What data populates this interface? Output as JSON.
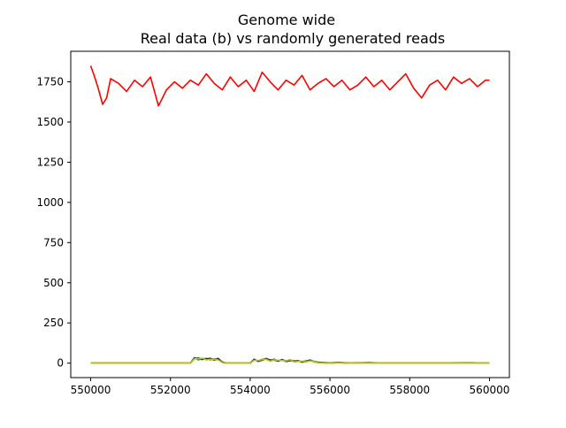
{
  "chart_data": {
    "type": "line",
    "title": "Genome wide",
    "subtitle": "Real data (b) vs randomly generated reads",
    "xlabel": "",
    "ylabel": "",
    "xlim": [
      549500,
      560500
    ],
    "ylim": [
      -90,
      1940
    ],
    "grid": false,
    "xticks": [
      550000,
      552000,
      554000,
      556000,
      558000,
      560000
    ],
    "xtick_labels": [
      "550000",
      "552000",
      "554000",
      "556000",
      "558000",
      "560000"
    ],
    "yticks": [
      0,
      250,
      500,
      750,
      1000,
      1250,
      1500,
      1750
    ],
    "ytick_labels": [
      "0",
      "250",
      "500",
      "750",
      "1000",
      "1250",
      "1500",
      "1750"
    ],
    "series": [
      {
        "color": "#ff0000",
        "x": [
          550000,
          550100,
          550200,
          550300,
          550400,
          550500,
          550700,
          550900,
          551100,
          551300,
          551500,
          551700,
          551900,
          552100,
          552300,
          552500,
          552700,
          552900,
          553100,
          553300,
          553500,
          553700,
          553900,
          554100,
          554300,
          554500,
          554700,
          554900,
          555100,
          555300,
          555500,
          555700,
          555900,
          556100,
          556300,
          556500,
          556700,
          556900,
          557100,
          557300,
          557500,
          557700,
          557900,
          558100,
          558300,
          558500,
          558700,
          558900,
          559100,
          559300,
          559500,
          559700,
          559900,
          560000
        ],
        "y": [
          1850,
          1780,
          1700,
          1610,
          1650,
          1770,
          1740,
          1690,
          1760,
          1720,
          1780,
          1600,
          1700,
          1750,
          1710,
          1760,
          1730,
          1800,
          1740,
          1700,
          1780,
          1720,
          1760,
          1690,
          1810,
          1750,
          1700,
          1760,
          1730,
          1790,
          1700,
          1740,
          1770,
          1720,
          1760,
          1700,
          1730,
          1780,
          1720,
          1760,
          1700,
          1750,
          1800,
          1710,
          1650,
          1730,
          1760,
          1700,
          1780,
          1740,
          1770,
          1720,
          1760,
          1760
        ]
      },
      {
        "color": "#1f77b4",
        "x": [
          550000,
          552500,
          552600,
          552700,
          552800,
          552900,
          553000,
          553100,
          553200,
          553300,
          553400,
          554000,
          554100,
          554200,
          554300,
          554400,
          554500,
          554600,
          554700,
          554800,
          554900,
          555000,
          555100,
          555200,
          555300,
          555400,
          555500,
          555600,
          555700,
          556000,
          556200,
          556500,
          557000,
          557200,
          557500,
          558000,
          559000,
          559500,
          559700,
          560000
        ],
        "y": [
          0,
          0,
          35,
          20,
          30,
          25,
          28,
          22,
          30,
          5,
          0,
          0,
          25,
          10,
          20,
          30,
          15,
          25,
          12,
          20,
          15,
          18,
          10,
          15,
          8,
          12,
          20,
          10,
          5,
          0,
          5,
          0,
          3,
          0,
          0,
          0,
          0,
          2,
          0,
          0
        ]
      },
      {
        "color": "#2ca02c",
        "x": [
          550000,
          552500,
          552600,
          552700,
          552800,
          552900,
          553000,
          553100,
          553200,
          553300,
          553400,
          554000,
          554100,
          554200,
          554300,
          554400,
          554500,
          554600,
          554700,
          554800,
          554900,
          555000,
          555100,
          555200,
          555300,
          555400,
          555500,
          555600,
          555700,
          556000,
          556200,
          556500,
          557000,
          557200,
          557500,
          558000,
          559000,
          559500,
          559700,
          560000
        ],
        "y": [
          0,
          0,
          30,
          25,
          22,
          30,
          20,
          26,
          24,
          8,
          0,
          0,
          20,
          14,
          24,
          26,
          18,
          22,
          16,
          18,
          12,
          20,
          14,
          12,
          10,
          14,
          16,
          12,
          6,
          2,
          4,
          0,
          2,
          0,
          0,
          0,
          0,
          0,
          0,
          0
        ]
      },
      {
        "color": "#222222",
        "x": [
          550000,
          552500,
          552600,
          552700,
          552800,
          552900,
          553000,
          553100,
          553200,
          553300,
          553400,
          554000,
          554100,
          554200,
          554300,
          554400,
          554500,
          554600,
          554700,
          554800,
          554900,
          555000,
          555100,
          555200,
          555300,
          555400,
          555500,
          555600,
          555700,
          556000,
          556200,
          556500,
          557000,
          557200,
          557500,
          558000,
          559000,
          559500,
          559700,
          560000
        ],
        "y": [
          0,
          0,
          28,
          32,
          24,
          26,
          30,
          18,
          26,
          6,
          0,
          0,
          22,
          12,
          18,
          28,
          20,
          18,
          14,
          22,
          10,
          16,
          12,
          14,
          6,
          10,
          18,
          8,
          4,
          0,
          3,
          0,
          1,
          0,
          0,
          0,
          0,
          1,
          0,
          0
        ]
      },
      {
        "color": "#bcbd22",
        "x": [
          550000,
          552500,
          552600,
          552700,
          552800,
          552900,
          553000,
          553100,
          553200,
          553300,
          553400,
          554000,
          554100,
          554200,
          554300,
          554400,
          554500,
          554600,
          554700,
          554800,
          554900,
          555000,
          555100,
          555200,
          555300,
          555400,
          555500,
          555600,
          555700,
          556000,
          556200,
          556500,
          557000,
          557200,
          557500,
          558000,
          559000,
          559500,
          559700,
          560000
        ],
        "y": [
          0,
          0,
          26,
          28,
          30,
          20,
          24,
          22,
          20,
          4,
          0,
          0,
          18,
          16,
          22,
          24,
          12,
          20,
          18,
          16,
          14,
          22,
          8,
          10,
          12,
          8,
          14,
          10,
          2,
          0,
          2,
          0,
          0,
          0,
          0,
          0,
          0,
          0,
          0,
          0
        ]
      }
    ]
  }
}
